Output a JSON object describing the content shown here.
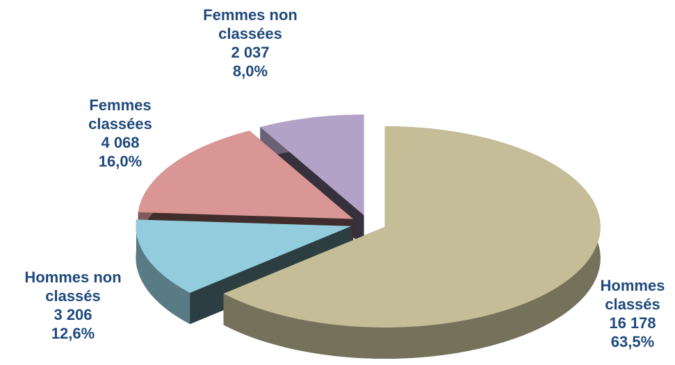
{
  "chart_data": {
    "type": "pie",
    "categories": [
      "Hommes classés",
      "Hommes non classés",
      "Femmes classées",
      "Femmes non classées"
    ],
    "values": [
      16178,
      3206,
      4068,
      2037
    ],
    "value_labels": [
      "16 178",
      "3 206",
      "4 068",
      "2 037"
    ],
    "percentages": [
      63.5,
      12.6,
      16.0,
      8.0
    ],
    "percentage_labels": [
      "63,5%",
      "12,6%",
      "16,0%",
      "8,0%"
    ],
    "colors": [
      "#c4bd97",
      "#93cddd",
      "#d99694",
      "#b3a2c7"
    ]
  }
}
